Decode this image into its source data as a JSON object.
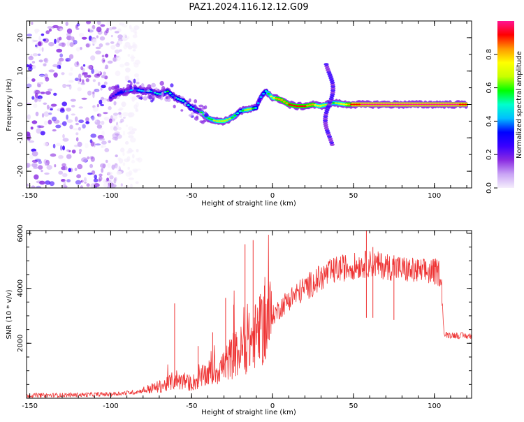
{
  "figure_title": "PAZ1.2024.116.12.12.G09",
  "chart_data": [
    {
      "type": "heatmap",
      "xlabel": "Height of straight line (km)",
      "ylabel": "Frequency (Hz)",
      "xlim": [
        -152,
        123
      ],
      "ylim": [
        -25,
        25
      ],
      "xticks": [
        -150,
        -100,
        -50,
        0,
        50,
        100
      ],
      "xtick_labels": [
        "-150",
        "-100",
        "-50",
        "0",
        "50",
        "100"
      ],
      "yticks": [
        -20,
        -10,
        0,
        10,
        20
      ],
      "ytick_labels": [
        "-20",
        "-10",
        "0",
        "10",
        "20"
      ],
      "colorbar": {
        "label": "Normalized spectral amplitude",
        "range": [
          0,
          1
        ],
        "ticks": [
          0.0,
          0.2,
          0.4,
          0.6,
          0.8
        ],
        "tick_labels": [
          "0.0",
          "0.2",
          "0.4",
          "0.6",
          "0.8"
        ],
        "colors": [
          "#f5eefc",
          "#c9a4f5",
          "#8a2be2",
          "#3a00ff",
          "#0000ff",
          "#00bfff",
          "#00ffcc",
          "#00ff00",
          "#c8ff00",
          "#ffff00",
          "#ff9900",
          "#ff0000",
          "#ff1493"
        ]
      },
      "noise_region_x": [
        -152,
        -82
      ],
      "ridge": {
        "x": [
          -100,
          -95,
          -90,
          -85,
          -80,
          -75,
          -70,
          -65,
          -60,
          -55,
          -50,
          -45,
          -40,
          -35,
          -30,
          -25,
          -20,
          -15,
          -10,
          -7,
          -4,
          0,
          5,
          10,
          15,
          20,
          25,
          29,
          38,
          45,
          50,
          60,
          70,
          80,
          90,
          100,
          110,
          120
        ],
        "y": [
          2,
          3.5,
          4,
          4.5,
          4,
          4,
          3,
          4,
          2,
          1,
          -1,
          -2,
          -4,
          -5,
          -5,
          -4,
          -2,
          -1.5,
          -1,
          2.5,
          4,
          2,
          1.5,
          0,
          -0.5,
          -0.5,
          0,
          -0.5,
          0.5,
          0,
          0,
          0,
          0,
          0,
          0,
          0,
          0,
          0
        ],
        "amplitude": [
          0.25,
          0.35,
          0.4,
          0.45,
          0.45,
          0.5,
          0.5,
          0.55,
          0.5,
          0.5,
          0.5,
          0.55,
          0.55,
          0.65,
          0.7,
          0.6,
          0.5,
          0.7,
          0.45,
          0.4,
          0.5,
          0.75,
          0.8,
          0.85,
          0.85,
          0.85,
          0.8,
          0.7,
          0.6,
          0.75,
          0.9,
          0.95,
          0.95,
          0.95,
          0.95,
          0.95,
          0.95,
          0.9
        ]
      },
      "vertical_feature": {
        "x": [
          32,
          38
        ],
        "y_range": [
          -12,
          12
        ]
      }
    },
    {
      "type": "line",
      "xlabel": "Height of straight line (km)",
      "ylabel": "SNR (10 * v/v)",
      "xlim": [
        -152,
        123
      ],
      "ylim": [
        0,
        6100
      ],
      "xticks": [
        -150,
        -100,
        -50,
        0,
        50,
        100
      ],
      "xtick_labels": [
        "-150",
        "-100",
        "-50",
        "0",
        "50",
        "100"
      ],
      "yticks": [
        2000,
        4000,
        6000
      ],
      "ytick_labels": [
        "2000",
        "4000",
        "6000"
      ],
      "color": "#ee3333",
      "envelope": {
        "x": [
          -152,
          -120,
          -100,
          -85,
          -75,
          -65,
          -60,
          -55,
          -50,
          -45,
          -40,
          -35,
          -30,
          -25,
          -20,
          -15,
          -10,
          -5,
          0,
          5,
          10,
          20,
          30,
          40,
          50,
          60,
          70,
          80,
          90,
          100,
          104,
          106,
          110,
          123
        ],
        "y": [
          100,
          120,
          150,
          220,
          350,
          500,
          700,
          600,
          550,
          700,
          900,
          1000,
          1200,
          1500,
          1700,
          2000,
          2300,
          2600,
          3000,
          3300,
          3600,
          4000,
          4400,
          4700,
          4800,
          4900,
          4800,
          4700,
          4600,
          4600,
          4550,
          2300,
          2300,
          2250
        ]
      },
      "spikes": [
        {
          "x": -60.5,
          "y": 3450
        },
        {
          "x": -46,
          "y": 1900
        },
        {
          "x": -37,
          "y": 2400
        },
        {
          "x": -29,
          "y": 3650
        },
        {
          "x": -24,
          "y": 3400
        },
        {
          "x": -17,
          "y": 5600
        },
        {
          "x": -12,
          "y": 5750
        },
        {
          "x": -8,
          "y": 3700
        },
        {
          "x": -5,
          "y": 4100
        },
        {
          "x": 58,
          "y": 6100
        },
        {
          "x": 62,
          "y": 5500
        },
        {
          "x": 75,
          "y": 5200
        }
      ]
    }
  ]
}
